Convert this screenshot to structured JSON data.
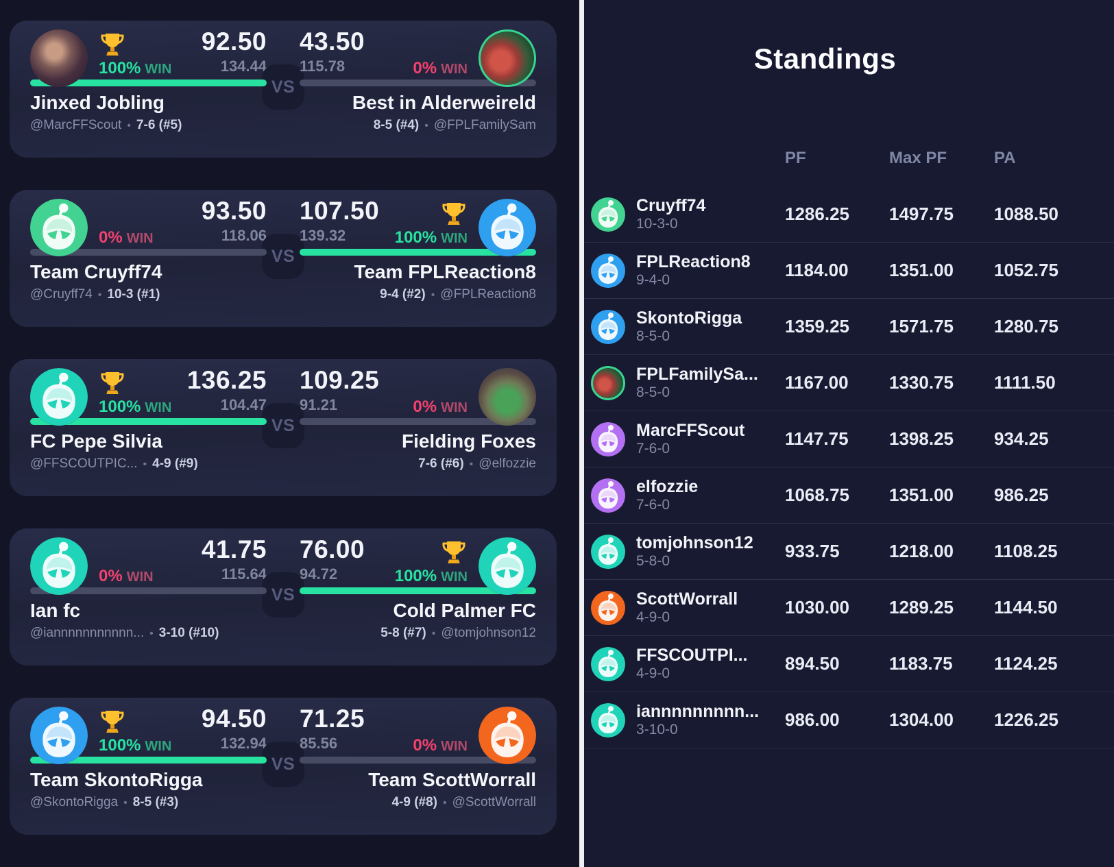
{
  "labels": {
    "win": "WIN",
    "vs": "VS"
  },
  "colors": {
    "win_accent": "#27e2a1",
    "loss_accent": "#f4416e",
    "loser_bar": "#474b64",
    "trophy_gold": "#ffc02e",
    "avatar": {
      "green": "#42d392",
      "blue": "#2f9ff0",
      "teal": "#1fd4b8",
      "orange": "#f3661d",
      "purple": "#b470f2"
    }
  },
  "matchups": [
    {
      "left": {
        "name": "Jinxed Jobling",
        "handle": "@MarcFFScout",
        "record": "7-6 (#5)",
        "score": "92.50",
        "proj": "134.44",
        "win_pct": "100%",
        "winner": true,
        "avatar": "photo:jinxed"
      },
      "right": {
        "name": "Best in Alderweireld",
        "handle": "@FPLFamilySam",
        "record": "8-5 (#4)",
        "score": "43.50",
        "proj": "115.78",
        "win_pct": "0%",
        "winner": false,
        "avatar": "photo:fplfamily"
      }
    },
    {
      "left": {
        "name": "Team Cruyff74",
        "handle": "@Cruyff74",
        "record": "10-3 (#1)",
        "score": "93.50",
        "proj": "118.06",
        "win_pct": "0%",
        "winner": false,
        "avatar": "robot:green"
      },
      "right": {
        "name": "Team FPLReaction8",
        "handle": "@FPLReaction8",
        "record": "9-4 (#2)",
        "score": "107.50",
        "proj": "139.32",
        "win_pct": "100%",
        "winner": true,
        "avatar": "robot:blue"
      }
    },
    {
      "left": {
        "name": "FC Pepe Silvia",
        "handle": "@FFSCOUTPIC...",
        "record": "4-9 (#9)",
        "score": "136.25",
        "proj": "104.47",
        "win_pct": "100%",
        "winner": true,
        "avatar": "robot:teal"
      },
      "right": {
        "name": "Fielding Foxes",
        "handle": "@elfozzie",
        "record": "7-6 (#6)",
        "score": "109.25",
        "proj": "91.21",
        "win_pct": "0%",
        "winner": false,
        "avatar": "photo:elfozzie"
      }
    },
    {
      "left": {
        "name": "Ian fc",
        "handle": "@iannnnnnnnnnn...",
        "record": "3-10 (#10)",
        "score": "41.75",
        "proj": "115.64",
        "win_pct": "0%",
        "winner": false,
        "avatar": "robot:teal"
      },
      "right": {
        "name": "Cold Palmer FC",
        "handle": "@tomjohnson12",
        "record": "5-8 (#7)",
        "score": "76.00",
        "proj": "94.72",
        "win_pct": "100%",
        "winner": true,
        "avatar": "robot:teal"
      }
    },
    {
      "left": {
        "name": "Team SkontoRigga",
        "handle": "@SkontoRigga",
        "record": "8-5 (#3)",
        "score": "94.50",
        "proj": "132.94",
        "win_pct": "100%",
        "winner": true,
        "avatar": "robot:blue"
      },
      "right": {
        "name": "Team ScottWorrall",
        "handle": "@ScottWorrall",
        "record": "4-9 (#8)",
        "score": "71.25",
        "proj": "85.56",
        "win_pct": "0%",
        "winner": false,
        "avatar": "robot:orange"
      }
    }
  ],
  "standings": {
    "title": "Standings",
    "columns": [
      "PF",
      "Max PF",
      "PA"
    ],
    "rows": [
      {
        "name": "Cruyff74",
        "record": "10-3-0",
        "pf": "1286.25",
        "max_pf": "1497.75",
        "pa": "1088.50",
        "avatar": "robot:green"
      },
      {
        "name": "FPLReaction8",
        "record": "9-4-0",
        "pf": "1184.00",
        "max_pf": "1351.00",
        "pa": "1052.75",
        "avatar": "robot:blue"
      },
      {
        "name": "SkontoRigga",
        "record": "8-5-0",
        "pf": "1359.25",
        "max_pf": "1571.75",
        "pa": "1280.75",
        "avatar": "robot:blue"
      },
      {
        "name": "FPLFamilySa...",
        "record": "8-5-0",
        "pf": "1167.00",
        "max_pf": "1330.75",
        "pa": "1111.50",
        "avatar": "photo:fplfamily"
      },
      {
        "name": "MarcFFScout",
        "record": "7-6-0",
        "pf": "1147.75",
        "max_pf": "1398.25",
        "pa": "934.25",
        "avatar": "robot:purple"
      },
      {
        "name": "elfozzie",
        "record": "7-6-0",
        "pf": "1068.75",
        "max_pf": "1351.00",
        "pa": "986.25",
        "avatar": "robot:purple"
      },
      {
        "name": "tomjohnson12",
        "record": "5-8-0",
        "pf": "933.75",
        "max_pf": "1218.00",
        "pa": "1108.25",
        "avatar": "robot:teal"
      },
      {
        "name": "ScottWorrall",
        "record": "4-9-0",
        "pf": "1030.00",
        "max_pf": "1289.25",
        "pa": "1144.50",
        "avatar": "robot:orange"
      },
      {
        "name": "FFSCOUTPI...",
        "record": "4-9-0",
        "pf": "894.50",
        "max_pf": "1183.75",
        "pa": "1124.25",
        "avatar": "robot:teal"
      },
      {
        "name": "iannnnnnnnn...",
        "record": "3-10-0",
        "pf": "986.00",
        "max_pf": "1304.00",
        "pa": "1226.25",
        "avatar": "robot:teal"
      }
    ]
  }
}
